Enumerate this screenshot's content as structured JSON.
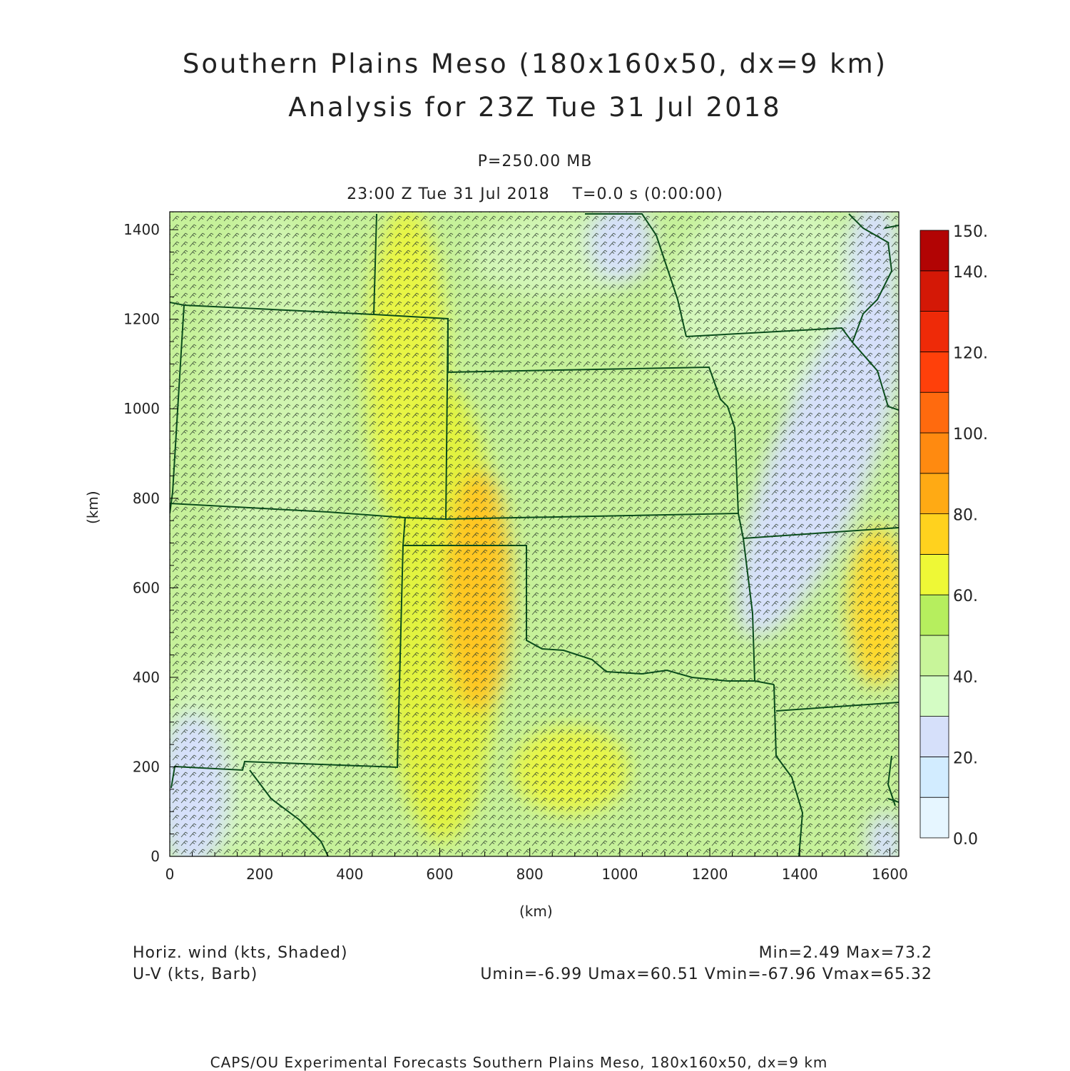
{
  "header": {
    "title_line1": "Southern Plains Meso (180x160x50, dx=9 km)",
    "title_line2": "Analysis for 23Z Tue 31 Jul 2018",
    "level": "P=250.00 MB",
    "time_line": "23:00 Z Tue 31 Jul 2018    T=0.0 s (0:00:00)"
  },
  "axes": {
    "x_unit": "(km)",
    "y_unit": "(km)",
    "x_ticks": [
      "0",
      "200",
      "400",
      "600",
      "800",
      "1000",
      "1200",
      "1400",
      "1600"
    ],
    "y_ticks": [
      "0",
      "200",
      "400",
      "600",
      "800",
      "1000",
      "1200",
      "1400"
    ],
    "x_range": [
      0,
      1620
    ],
    "y_range": [
      0,
      1440
    ]
  },
  "colorbar": {
    "labels": [
      "0.0",
      "20.",
      "40.",
      "60.",
      "80.",
      "100.",
      "120.",
      "140.",
      "150."
    ],
    "colors": [
      "#e6f6ff",
      "#d2ecff",
      "#d6e0fa",
      "#d4fcc4",
      "#c8f59a",
      "#b6ee5e",
      "#eef836",
      "#ffd21e",
      "#ffaa14",
      "#ff8a10",
      "#ff6a0e",
      "#ff400a",
      "#ee2a08",
      "#d41806",
      "#b20404"
    ]
  },
  "fields": {
    "shaded_label": "Horiz. wind (kts, Shaded)",
    "barb_label": "U-V (kts, Barb)",
    "min_max": "Min=2.49 Max=73.2",
    "uv_stats": "Umin=-6.99 Umax=60.51 Vmin=-67.96 Vmax=65.32"
  },
  "footer": {
    "credit": "CAPS/OU Experimental Forecasts  Southern Plains Meso, 180x160x50, dx=9 km"
  }
}
